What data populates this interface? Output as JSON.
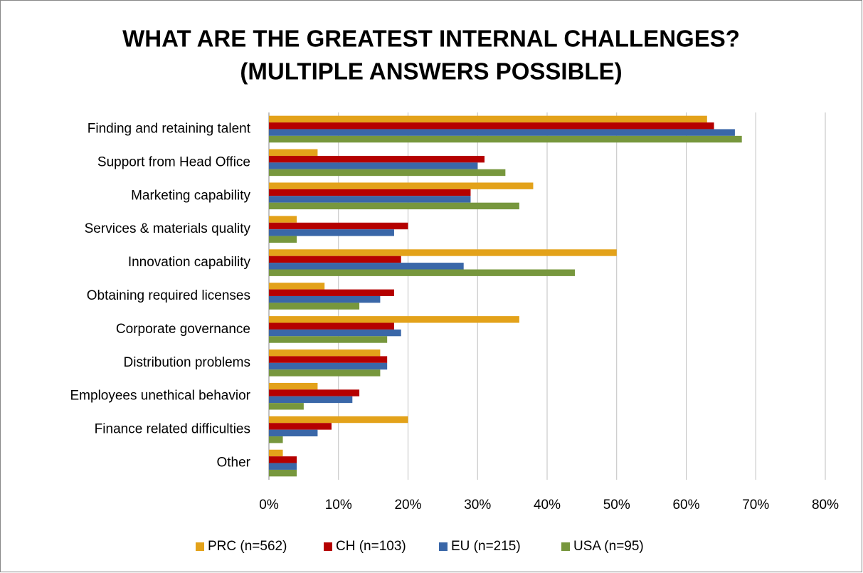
{
  "chart_data": {
    "type": "hbar",
    "title": [
      "WHAT ARE THE GREATEST INTERNAL CHALLENGES?",
      "(MULTIPLE ANSWERS POSSIBLE)"
    ],
    "categories": [
      "Finding and retaining talent",
      "Support from Head Office",
      "Marketing capability",
      "Services & materials quality",
      "Innovation capability",
      "Obtaining required licenses",
      "Corporate governance",
      "Distribution problems",
      "Employees unethical behavior",
      "Finance related difficulties",
      "Other"
    ],
    "series": [
      {
        "name": "PRC (n=562)",
        "color": "#e3a21a",
        "values": [
          63,
          7,
          38,
          4,
          50,
          8,
          36,
          16,
          7,
          20,
          2
        ]
      },
      {
        "name": "CH (n=103)",
        "color": "#b50000",
        "values": [
          64,
          31,
          29,
          20,
          19,
          18,
          18,
          17,
          13,
          9,
          4
        ]
      },
      {
        "name": "EU (n=215)",
        "color": "#3a67a8",
        "values": [
          67,
          30,
          29,
          18,
          28,
          16,
          19,
          17,
          12,
          7,
          4
        ]
      },
      {
        "name": "USA (n=95)",
        "color": "#77973d",
        "values": [
          68,
          34,
          36,
          4,
          44,
          13,
          17,
          16,
          5,
          2,
          4
        ]
      }
    ],
    "xlim": [
      0,
      80
    ],
    "xticks": [
      {
        "value": 0,
        "label": "0%"
      },
      {
        "value": 10,
        "label": "10%"
      },
      {
        "value": 20,
        "label": "20%"
      },
      {
        "value": 30,
        "label": "30%"
      },
      {
        "value": 40,
        "label": "40%"
      },
      {
        "value": 50,
        "label": "50%"
      },
      {
        "value": 60,
        "label": "60%"
      },
      {
        "value": 70,
        "label": "70%"
      },
      {
        "value": 80,
        "label": "80%"
      }
    ],
    "grid": true,
    "legend": "bottom"
  }
}
